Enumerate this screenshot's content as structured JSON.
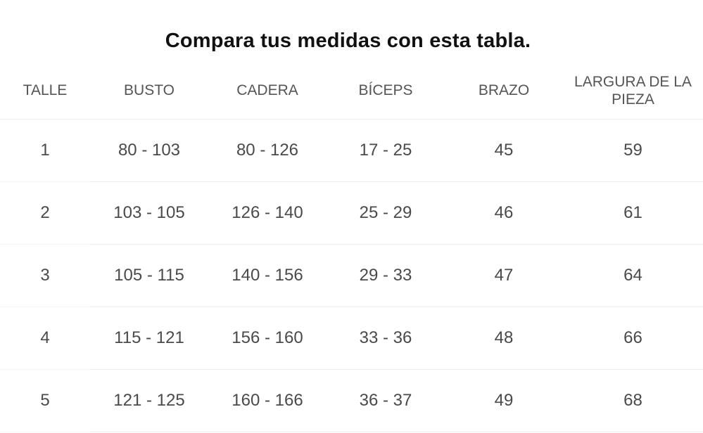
{
  "title": "Compara tus medidas con esta tabla.",
  "table": {
    "headers": [
      "TALLE",
      "BUSTO",
      "CADERA",
      "BÍCEPS",
      "BRAZO",
      "LARGURA DE LA PIEZA"
    ],
    "rows": [
      [
        "1",
        "80 - 103",
        "80 - 126",
        "17 - 25",
        "45",
        "59"
      ],
      [
        "2",
        "103 - 105",
        "126 - 140",
        "25 - 29",
        "46",
        "61"
      ],
      [
        "3",
        "105 - 115",
        "140 - 156",
        "29 - 33",
        "47",
        "64"
      ],
      [
        "4",
        "115 - 121",
        "156 - 160",
        "33 - 36",
        "48",
        "66"
      ],
      [
        "5",
        "121 - 125",
        "160 - 166",
        "36 - 37",
        "49",
        "68"
      ]
    ]
  }
}
